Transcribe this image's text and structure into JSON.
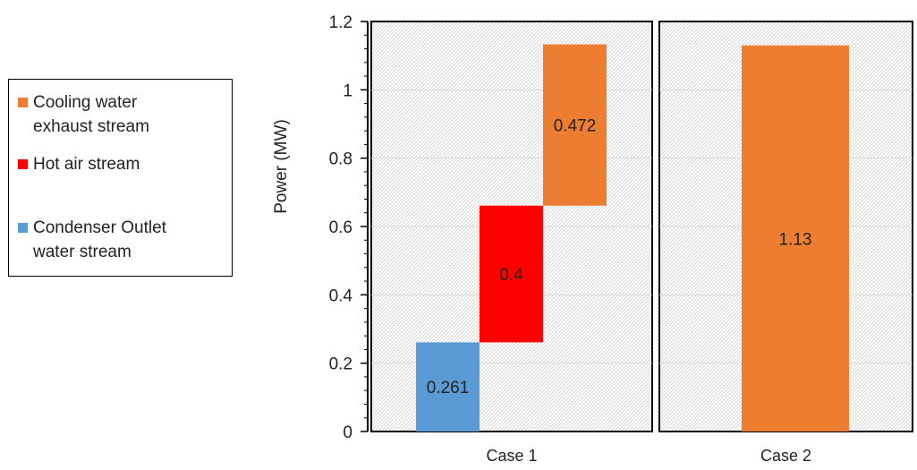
{
  "chart_data": {
    "type": "bar",
    "subtype": "floating-stacked",
    "ylabel": "Power  (MW)",
    "ylim": [
      0,
      1.2
    ],
    "yticks": [
      "0",
      "0.2",
      "0.4",
      "0.6",
      "0.8",
      "1",
      "1.2"
    ],
    "grid": true,
    "legend_placement": "left",
    "panels": [
      {
        "category": "Case 1",
        "bars": [
          {
            "series": "Condenser Outlet water stream",
            "bottom": 0,
            "top": 0.261,
            "label": "0.261"
          },
          {
            "series": "Hot air stream",
            "bottom": 0.261,
            "top": 0.661,
            "label": "0.4"
          },
          {
            "series": "Cooling water exhaust stream",
            "bottom": 0.661,
            "top": 1.133,
            "label": "0.472"
          }
        ]
      },
      {
        "category": "Case 2",
        "bars": [
          {
            "series": "Cooling water exhaust stream",
            "bottom": 0,
            "top": 1.13,
            "label": "1.13"
          }
        ]
      }
    ],
    "series": [
      {
        "name": "Cooling water exhaust stream",
        "color": "#ED7D31"
      },
      {
        "name": "Hot air stream",
        "color": "#FF0000"
      },
      {
        "name": "Condenser Outlet water stream",
        "color": "#5B9BD5"
      }
    ]
  },
  "legend": {
    "entries": [
      {
        "line1": "Cooling water",
        "line2": "exhaust stream",
        "color": "#ED7D31"
      },
      {
        "line1": "Hot air stream",
        "line2": "",
        "color": "#FF0000"
      },
      {
        "line1": "Condenser Outlet",
        "line2": "water stream",
        "color": "#5B9BD5"
      }
    ]
  }
}
